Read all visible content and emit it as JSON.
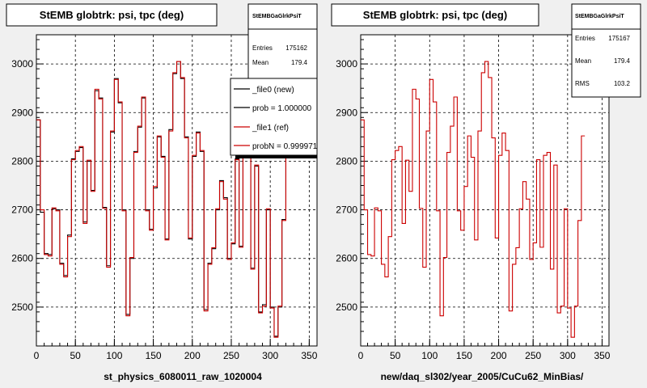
{
  "colors": {
    "new": "#000000",
    "ref": "#cc0000",
    "grid": "#000000",
    "frame_bg": "#ffffff",
    "page_bg": "#f0f0f0"
  },
  "footer": "",
  "chart_data": [
    {
      "type": "line",
      "title": "StEMB globtrk: psi, tpc (deg)",
      "xlabel": "st_physics_6080011_raw_1020004",
      "xlim": [
        0,
        360
      ],
      "ylim": [
        2420,
        3060
      ],
      "xticks": [
        0,
        50,
        100,
        150,
        200,
        250,
        300,
        350
      ],
      "yticks": [
        2500,
        2600,
        2700,
        2800,
        2900,
        3000
      ],
      "grid": true,
      "stats": {
        "name": "StEMBGaGlrkPsiT",
        "rows": [
          {
            "label": "Entries",
            "value": "175162"
          },
          {
            "label": "Mean",
            "value": "179.4"
          }
        ]
      },
      "legend": {
        "position": "top-right",
        "entries": [
          {
            "label": "_file0 (new)",
            "color": "#000000"
          },
          {
            "label": "prob = 1.000000",
            "color": "#000000"
          },
          {
            "label": "_file1 (ref)",
            "color": "#cc0000"
          },
          {
            "label": "probN = 0.999971",
            "color": "#cc0000"
          }
        ]
      },
      "bin_width": 5,
      "series": [
        {
          "name": "_file0 (new)",
          "values": [
            2885,
            2695,
            2610,
            2608,
            2702,
            2700,
            2590,
            2565,
            2648,
            2805,
            2820,
            2828,
            2675,
            2800,
            2740,
            2945,
            2930,
            2705,
            2585,
            2860,
            2970,
            2920,
            2700,
            2485,
            2600,
            2820,
            2870,
            2930,
            2700,
            2660,
            2745,
            2850,
            2810,
            2640,
            2865,
            2980,
            3005,
            2970,
            2850,
            2640,
            2810,
            2860,
            2820,
            2495,
            2590,
            2620,
            2700,
            2760,
            2725,
            2600,
            2630,
            2805,
            2625,
            2810,
            2820,
            2580,
            2790,
            2490,
            2505,
            2700,
            2500,
            2440,
            2500,
            2680,
            2850
          ]
        },
        {
          "name": "_file1 (ref)",
          "values": [
            2885,
            2700,
            2608,
            2605,
            2704,
            2698,
            2588,
            2562,
            2645,
            2803,
            2822,
            2830,
            2672,
            2802,
            2738,
            2948,
            2928,
            2703,
            2582,
            2862,
            2968,
            2922,
            2698,
            2482,
            2602,
            2818,
            2872,
            2932,
            2698,
            2658,
            2748,
            2852,
            2808,
            2638,
            2862,
            2982,
            3005,
            2972,
            2848,
            2642,
            2812,
            2858,
            2822,
            2492,
            2588,
            2622,
            2702,
            2758,
            2722,
            2598,
            2632,
            2803,
            2623,
            2812,
            2818,
            2578,
            2792,
            2488,
            2502,
            2702,
            2498,
            2438,
            2502,
            2678,
            2852
          ]
        }
      ]
    },
    {
      "type": "line",
      "title": "StEMB globtrk: psi, tpc (deg)",
      "xlabel": "new/daq_sl302/year_2005/CuCu62_MinBias/",
      "xlim": [
        0,
        360
      ],
      "ylim": [
        2420,
        3060
      ],
      "xticks": [
        0,
        50,
        100,
        150,
        200,
        250,
        300,
        350
      ],
      "yticks": [
        2500,
        2600,
        2700,
        2800,
        2900,
        3000
      ],
      "grid": true,
      "stats": {
        "name": "StEMBGaGlrkPsiT",
        "rows": [
          {
            "label": "Entries",
            "value": "175167"
          },
          {
            "label": "Mean",
            "value": "179.4"
          },
          {
            "label": "RMS",
            "value": "103.2"
          }
        ]
      },
      "bin_width": 5,
      "series": [
        {
          "name": "_file1 (ref)",
          "values": [
            2885,
            2700,
            2608,
            2605,
            2704,
            2698,
            2588,
            2562,
            2645,
            2803,
            2822,
            2830,
            2672,
            2802,
            2738,
            2948,
            2928,
            2703,
            2582,
            2862,
            2968,
            2922,
            2698,
            2482,
            2602,
            2818,
            2872,
            2932,
            2698,
            2658,
            2748,
            2852,
            2808,
            2638,
            2862,
            2982,
            3005,
            2972,
            2848,
            2642,
            2812,
            2858,
            2822,
            2492,
            2588,
            2622,
            2702,
            2758,
            2722,
            2598,
            2632,
            2803,
            2623,
            2812,
            2818,
            2578,
            2792,
            2488,
            2502,
            2702,
            2498,
            2438,
            2502,
            2678,
            2852
          ]
        }
      ]
    }
  ]
}
